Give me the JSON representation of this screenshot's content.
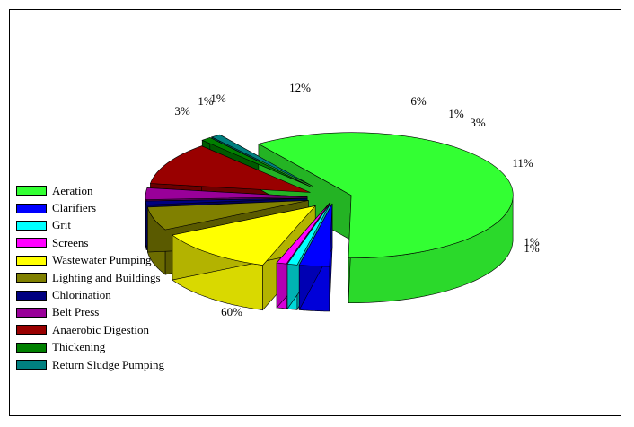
{
  "chart_data": {
    "type": "pie",
    "style": "exploded-3d",
    "legend_placement": "left",
    "categories": [
      "Aeration",
      "Clarifiers",
      "Grit",
      "Screens",
      "Wastewater Pumping",
      "Lighting and Buildings",
      "Chlorination",
      "Belt Press",
      "Anaerobic Digestion",
      "Thickening",
      "Return Sludge Pumping"
    ],
    "values": [
      60,
      3,
      1,
      1,
      12,
      6,
      1,
      3,
      11,
      1,
      1
    ],
    "data_labels": [
      "60%",
      "3%",
      "1%",
      "1%",
      "12%",
      "6%",
      "1%",
      "3%",
      "11%",
      "1%",
      "1%"
    ],
    "colors": [
      "#33ff33",
      "#0000ff",
      "#00ffff",
      "#ff00ff",
      "#ffff00",
      "#808000",
      "#000080",
      "#990099",
      "#990000",
      "#008000",
      "#008080"
    ]
  }
}
